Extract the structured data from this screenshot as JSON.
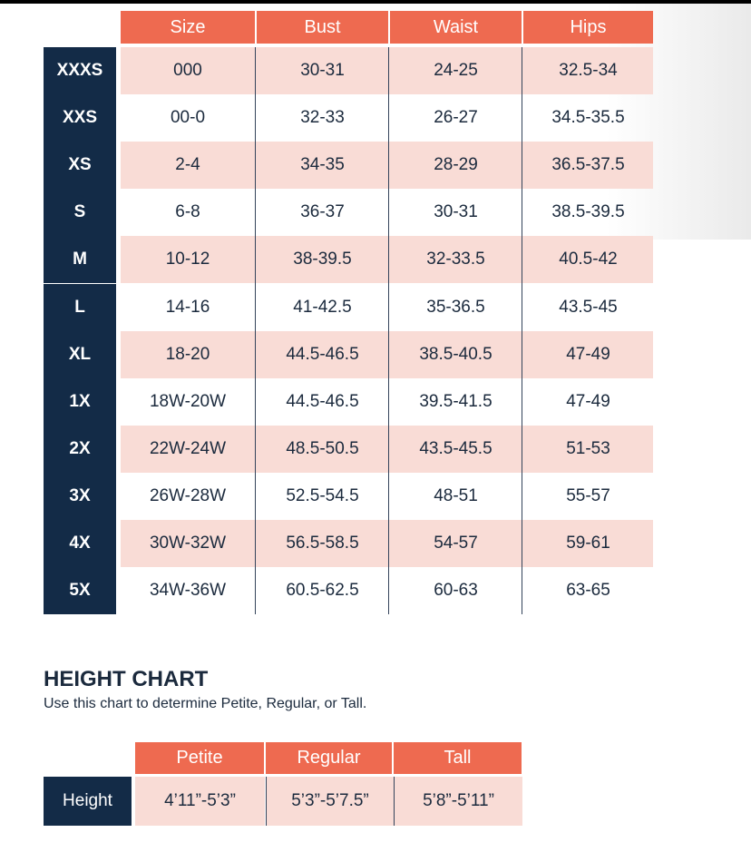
{
  "size_chart": {
    "headers": [
      "Size",
      "Bust",
      "Waist",
      "Hips"
    ],
    "rows": [
      {
        "label": "XXXS",
        "values": [
          "000",
          "30-31",
          "24-25",
          "32.5-34"
        ]
      },
      {
        "label": "XXS",
        "values": [
          "00-0",
          "32-33",
          "26-27",
          "34.5-35.5"
        ]
      },
      {
        "label": "XS",
        "values": [
          "2-4",
          "34-35",
          "28-29",
          "36.5-37.5"
        ]
      },
      {
        "label": "S",
        "values": [
          "6-8",
          "36-37",
          "30-31",
          "38.5-39.5"
        ]
      },
      {
        "label": "M",
        "values": [
          "10-12",
          "38-39.5",
          "32-33.5",
          "40.5-42"
        ]
      },
      {
        "label": "L",
        "values": [
          "14-16",
          "41-42.5",
          "35-36.5",
          "43.5-45"
        ]
      },
      {
        "label": "XL",
        "values": [
          "18-20",
          "44.5-46.5",
          "38.5-40.5",
          "47-49"
        ]
      },
      {
        "label": "1X",
        "values": [
          "18W-20W",
          "44.5-46.5",
          "39.5-41.5",
          "47-49"
        ]
      },
      {
        "label": "2X",
        "values": [
          "22W-24W",
          "48.5-50.5",
          "43.5-45.5",
          "51-53"
        ]
      },
      {
        "label": "3X",
        "values": [
          "26W-28W",
          "52.5-54.5",
          "48-51",
          "55-57"
        ]
      },
      {
        "label": "4X",
        "values": [
          "30W-32W",
          "56.5-58.5",
          "54-57",
          "59-61"
        ]
      },
      {
        "label": "5X",
        "values": [
          "34W-36W",
          "60.5-62.5",
          "60-63",
          "63-65"
        ]
      }
    ]
  },
  "height_chart": {
    "title": "HEIGHT CHART",
    "subtitle": "Use this chart to determine Petite, Regular, or Tall.",
    "headers": [
      "Petite",
      "Regular",
      "Tall"
    ],
    "row_label": "Height",
    "values": [
      "4’11”-5’3”",
      "5’3”-5’7.5”",
      "5’8”-5’11”"
    ]
  },
  "colors": {
    "header": "#ee6a50",
    "label": "#132b47",
    "stripe": "#f9dcd6"
  }
}
